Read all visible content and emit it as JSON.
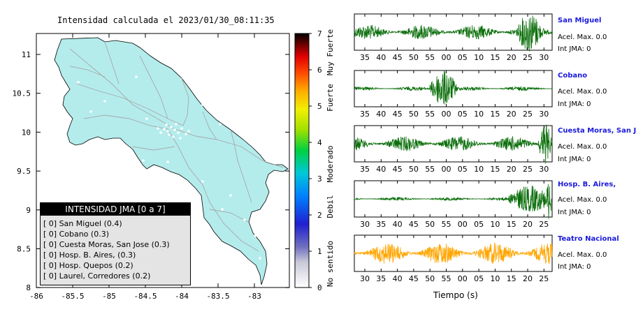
{
  "map": {
    "title": "Intensidad calculada el 2023/01/30_08:11:35",
    "x_ticks": [
      "-86",
      "-85.5",
      "-85",
      "-84.5",
      "-84",
      "-83.5",
      "-83"
    ],
    "y_ticks": [
      "11",
      "10.5",
      "10",
      "9.5",
      "9",
      "8.5",
      "8"
    ]
  },
  "colorbar": {
    "ticks": [
      "0",
      "1",
      "2",
      "3",
      "4",
      "5",
      "6",
      "7"
    ],
    "class_labels": [
      "No sentido",
      "Debil",
      "Moderado",
      "Fuerte",
      "Muy Fuerte"
    ]
  },
  "legend": {
    "header": "INTENSIDAD JMA [0 a 7]",
    "rows": [
      "[ 0] San Miguel (0.4)",
      "[ 0] Cobano (0.3)",
      "[ 0] Cuesta Moras, San Jose (0.3)",
      "[ 0] Hosp. B. Aires, (0.3)",
      "[ 0] Hosp. Quepos (0.2)",
      "[ 0] Laurel, Corredores (0.2)"
    ]
  },
  "waveforms": {
    "time_label": "Tiempo (s)",
    "colors": {
      "default": "#0a6e0a",
      "highlight": "#ffa500"
    }
  },
  "stations": [
    {
      "name": "San Miguel",
      "acel": "Acel. Max. 0.0",
      "int": "Int JMA: 0",
      "ticks": [
        "35",
        "40",
        "45",
        "50",
        "55",
        "00",
        "05",
        "10",
        "15",
        "20",
        "25",
        "30"
      ]
    },
    {
      "name": "Cobano",
      "acel": "Acel. Max. 0.0",
      "int": "Int JMA: 0",
      "ticks": [
        "35",
        "40",
        "45",
        "50",
        "55",
        "00",
        "05",
        "10",
        "15",
        "20",
        "25",
        "30"
      ]
    },
    {
      "name": "Cuesta Moras, San Jose",
      "acel": "Acel. Max. 0.0",
      "int": "Int JMA: 0",
      "ticks": [
        "35",
        "40",
        "45",
        "50",
        "55",
        "00",
        "05",
        "10",
        "15",
        "20",
        "25",
        "30"
      ]
    },
    {
      "name": "Hosp. B. Aires,",
      "acel": "Acel. Max. 0.0",
      "int": "Int JMA: 0",
      "ticks": [
        "30",
        "35",
        "40",
        "45",
        "50",
        "55",
        "00",
        "05",
        "10",
        "15",
        "20",
        "25"
      ]
    },
    {
      "name": "Teatro Nacional",
      "acel": "Acel. Max. 0.0",
      "int": "Int JMA: 0",
      "ticks": [
        "30",
        "35",
        "40",
        "45",
        "50",
        "55",
        "00",
        "05",
        "10",
        "15",
        "20",
        "25"
      ]
    }
  ],
  "chart_data": [
    {
      "type": "heatmap",
      "title": "Intensidad calculada el 2023/01/30_08:11:35",
      "xlim": [
        -86,
        -82.6
      ],
      "ylim": [
        8,
        11.3
      ],
      "colorbar_range": [
        0,
        7
      ],
      "legend_placement": "bottom-left",
      "values": [
        {
          "station": "San Miguel",
          "intensity": 0,
          "value": 0.4
        },
        {
          "station": "Cobano",
          "intensity": 0,
          "value": 0.3
        },
        {
          "station": "Cuesta Moras, San Jose",
          "intensity": 0,
          "value": 0.3
        },
        {
          "station": "Hosp. B. Aires,",
          "intensity": 0,
          "value": 0.3
        },
        {
          "station": "Hosp. Quepos",
          "intensity": 0,
          "value": 0.2
        },
        {
          "station": "Laurel, Corredores",
          "intensity": 0,
          "value": 0.2
        }
      ]
    },
    {
      "type": "line",
      "xlabel": "Tiempo (s)",
      "series": [
        {
          "name": "San Miguel",
          "acel_max": 0.0,
          "int_jma": 0
        },
        {
          "name": "Cobano",
          "acel_max": 0.0,
          "int_jma": 0
        },
        {
          "name": "Cuesta Moras, San Jose",
          "acel_max": 0.0,
          "int_jma": 0
        },
        {
          "name": "Hosp. B. Aires,",
          "acel_max": 0.0,
          "int_jma": 0
        },
        {
          "name": "Teatro Nacional",
          "acel_max": 0.0,
          "int_jma": 0
        }
      ]
    }
  ]
}
